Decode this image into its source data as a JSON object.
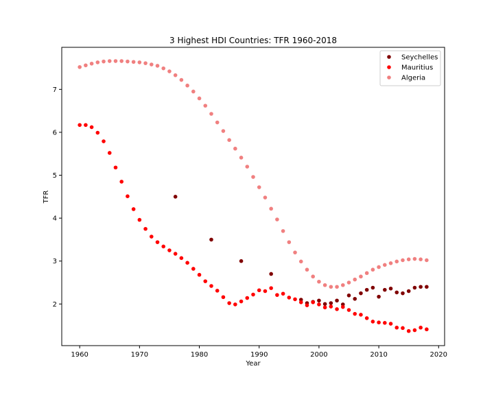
{
  "chart_data": {
    "type": "scatter",
    "title": "3 Highest HDI Countries: TFR 1960-2018",
    "xlabel": "Year",
    "ylabel": "TFR",
    "xlim": [
      1957,
      2021
    ],
    "ylim": [
      1.03,
      7.98
    ],
    "xticks": [
      1960,
      1970,
      1980,
      1990,
      2000,
      2010,
      2020
    ],
    "yticks": [
      2,
      3,
      4,
      5,
      6,
      7
    ],
    "grid": false,
    "legend_position": "top-right",
    "series": [
      {
        "name": "Seychelles",
        "color": "#800000",
        "points": [
          [
            1976,
            4.5
          ],
          [
            1982,
            3.5
          ],
          [
            1987,
            3.0
          ],
          [
            1992,
            2.7
          ],
          [
            1997,
            2.1
          ],
          [
            1998,
            2.02
          ],
          [
            1999,
            2.05
          ],
          [
            2000,
            2.08
          ],
          [
            2001,
            2.0
          ],
          [
            2002,
            2.02
          ],
          [
            2003,
            2.08
          ],
          [
            2004,
            1.99
          ],
          [
            2005,
            2.2
          ],
          [
            2006,
            2.12
          ],
          [
            2007,
            2.25
          ],
          [
            2008,
            2.33
          ],
          [
            2009,
            2.38
          ],
          [
            2010,
            2.17
          ],
          [
            2011,
            2.33
          ],
          [
            2012,
            2.36
          ],
          [
            2013,
            2.27
          ],
          [
            2014,
            2.25
          ],
          [
            2015,
            2.3
          ],
          [
            2016,
            2.38
          ],
          [
            2017,
            2.4
          ],
          [
            2018,
            2.4
          ]
        ]
      },
      {
        "name": "Mauritius",
        "color": "#ff0000",
        "points": [
          [
            1960,
            6.17
          ],
          [
            1961,
            6.17
          ],
          [
            1962,
            6.12
          ],
          [
            1963,
            5.99
          ],
          [
            1964,
            5.79
          ],
          [
            1965,
            5.52
          ],
          [
            1966,
            5.18
          ],
          [
            1967,
            4.85
          ],
          [
            1968,
            4.51
          ],
          [
            1969,
            4.21
          ],
          [
            1970,
            3.96
          ],
          [
            1971,
            3.75
          ],
          [
            1972,
            3.57
          ],
          [
            1973,
            3.44
          ],
          [
            1974,
            3.34
          ],
          [
            1975,
            3.25
          ],
          [
            1976,
            3.17
          ],
          [
            1977,
            3.07
          ],
          [
            1978,
            2.96
          ],
          [
            1979,
            2.82
          ],
          [
            1980,
            2.68
          ],
          [
            1981,
            2.53
          ],
          [
            1982,
            2.42
          ],
          [
            1983,
            2.31
          ],
          [
            1984,
            2.16
          ],
          [
            1985,
            2.02
          ],
          [
            1986,
            1.99
          ],
          [
            1987,
            2.06
          ],
          [
            1988,
            2.14
          ],
          [
            1989,
            2.22
          ],
          [
            1990,
            2.32
          ],
          [
            1991,
            2.3
          ],
          [
            1992,
            2.37
          ],
          [
            1993,
            2.21
          ],
          [
            1994,
            2.24
          ],
          [
            1995,
            2.15
          ],
          [
            1996,
            2.11
          ],
          [
            1997,
            2.04
          ],
          [
            1998,
            1.97
          ],
          [
            1999,
            2.04
          ],
          [
            2000,
            1.99
          ],
          [
            2001,
            1.92
          ],
          [
            2002,
            1.94
          ],
          [
            2003,
            1.88
          ],
          [
            2004,
            1.93
          ],
          [
            2005,
            1.86
          ],
          [
            2006,
            1.77
          ],
          [
            2007,
            1.75
          ],
          [
            2008,
            1.67
          ],
          [
            2009,
            1.59
          ],
          [
            2010,
            1.57
          ],
          [
            2011,
            1.56
          ],
          [
            2012,
            1.54
          ],
          [
            2013,
            1.45
          ],
          [
            2014,
            1.44
          ],
          [
            2015,
            1.37
          ],
          [
            2016,
            1.39
          ],
          [
            2017,
            1.45
          ],
          [
            2018,
            1.41
          ]
        ]
      },
      {
        "name": "Algeria",
        "color": "#f08080",
        "points": [
          [
            1960,
            7.52
          ],
          [
            1961,
            7.56
          ],
          [
            1962,
            7.6
          ],
          [
            1963,
            7.63
          ],
          [
            1964,
            7.65
          ],
          [
            1965,
            7.66
          ],
          [
            1966,
            7.66
          ],
          [
            1967,
            7.66
          ],
          [
            1968,
            7.65
          ],
          [
            1969,
            7.64
          ],
          [
            1970,
            7.63
          ],
          [
            1971,
            7.61
          ],
          [
            1972,
            7.58
          ],
          [
            1973,
            7.55
          ],
          [
            1974,
            7.49
          ],
          [
            1975,
            7.42
          ],
          [
            1976,
            7.33
          ],
          [
            1977,
            7.22
          ],
          [
            1978,
            7.09
          ],
          [
            1979,
            6.95
          ],
          [
            1980,
            6.79
          ],
          [
            1981,
            6.62
          ],
          [
            1982,
            6.43
          ],
          [
            1983,
            6.23
          ],
          [
            1984,
            6.03
          ],
          [
            1985,
            5.82
          ],
          [
            1986,
            5.62
          ],
          [
            1987,
            5.41
          ],
          [
            1988,
            5.2
          ],
          [
            1989,
            4.96
          ],
          [
            1990,
            4.72
          ],
          [
            1991,
            4.48
          ],
          [
            1992,
            4.22
          ],
          [
            1993,
            3.97
          ],
          [
            1994,
            3.7
          ],
          [
            1995,
            3.44
          ],
          [
            1996,
            3.2
          ],
          [
            1997,
            2.99
          ],
          [
            1998,
            2.8
          ],
          [
            1999,
            2.64
          ],
          [
            2000,
            2.52
          ],
          [
            2001,
            2.44
          ],
          [
            2002,
            2.4
          ],
          [
            2003,
            2.4
          ],
          [
            2004,
            2.44
          ],
          [
            2005,
            2.5
          ],
          [
            2006,
            2.57
          ],
          [
            2007,
            2.64
          ],
          [
            2008,
            2.72
          ],
          [
            2009,
            2.8
          ],
          [
            2010,
            2.86
          ],
          [
            2011,
            2.91
          ],
          [
            2012,
            2.95
          ],
          [
            2013,
            2.99
          ],
          [
            2014,
            3.02
          ],
          [
            2015,
            3.04
          ],
          [
            2016,
            3.05
          ],
          [
            2017,
            3.04
          ],
          [
            2018,
            3.02
          ]
        ]
      }
    ]
  }
}
